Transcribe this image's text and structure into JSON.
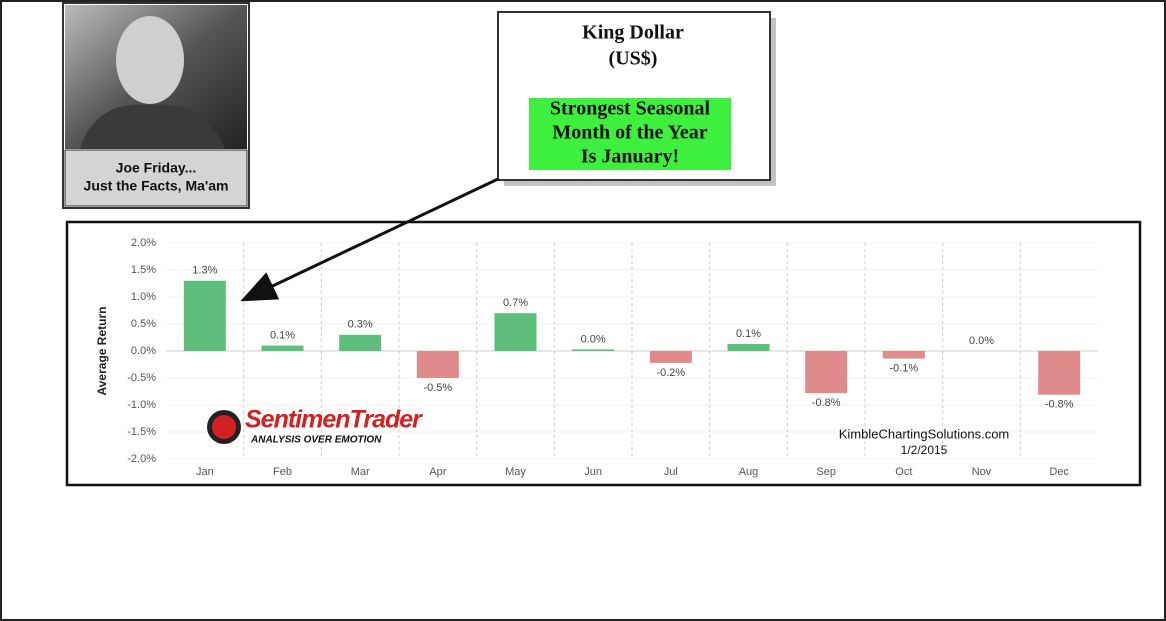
{
  "chart_data": {
    "type": "bar",
    "y_label": "Average Return",
    "categories": [
      "Jan",
      "Feb",
      "Mar",
      "Apr",
      "May",
      "Jun",
      "Jul",
      "Aug",
      "Sep",
      "Oct",
      "Nov",
      "Dec"
    ],
    "values": [
      1.3,
      0.1,
      0.3,
      -0.5,
      0.7,
      0.03,
      -0.22,
      0.13,
      -0.78,
      -0.14,
      0,
      -0.81
    ],
    "value_labels": [
      "1.3%",
      "0.1%",
      "0.3%",
      "-0.5%",
      "0.7%",
      "0.0%",
      "-0.2%",
      "0.1%",
      "-0.8%",
      "-0.1%",
      "0.0%",
      "-0.8%"
    ],
    "positive_color": "#5dbf7b",
    "negative_color": "#e08b8b",
    "ylim": [
      -2,
      2
    ],
    "yticks": [
      {
        "value": -2,
        "label": "-2.0%"
      },
      {
        "value": -1.5,
        "label": "-1.5%"
      },
      {
        "value": -1,
        "label": "-1.0%"
      },
      {
        "value": -0.5,
        "label": "-0.5%"
      },
      {
        "value": 0,
        "label": "0.0%"
      },
      {
        "value": 0.5,
        "label": "0.5%"
      },
      {
        "value": 1,
        "label": "1.0%"
      },
      {
        "value": 1.5,
        "label": "1.5%"
      },
      {
        "value": 2,
        "label": "2.0%"
      }
    ],
    "grid": true,
    "watermark": {
      "brand": "SentimenTrader",
      "tagline": "ANALYSIS OVER EMOTION"
    },
    "source": "KimbleChartingSolutions.com",
    "date": "1/2/2015"
  },
  "photo_caption": [
    "Joe Friday...",
    "Just the Facts, Ma'am"
  ],
  "callout": {
    "title": [
      "King Dollar",
      "(US$)"
    ],
    "highlight": [
      "Strongest Seasonal",
      "Month of the Year",
      "Is January!"
    ]
  }
}
